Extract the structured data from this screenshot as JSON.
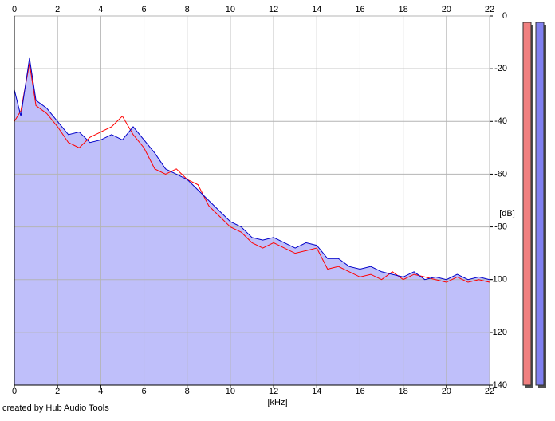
{
  "chart_data": {
    "type": "line",
    "x_label": "[kHz]",
    "y_label": "[dB]",
    "footer": "created by Hub Audio Tools",
    "x": [
      0,
      0.3,
      0.7,
      1,
      1.5,
      2,
      2.5,
      3,
      3.5,
      4,
      4.5,
      5,
      5.5,
      6,
      6.5,
      7,
      7.5,
      8,
      8.5,
      9,
      9.5,
      10,
      10.5,
      11,
      11.5,
      12,
      12.5,
      13,
      13.5,
      14,
      14.5,
      15,
      15.5,
      16,
      16.5,
      17,
      17.5,
      18,
      18.5,
      19,
      19.5,
      20,
      20.5,
      21,
      21.5,
      22
    ],
    "series": [
      {
        "color": "#ff0000",
        "values": [
          -40,
          -36,
          -18,
          -34,
          -37,
          -42,
          -48,
          -50,
          -46,
          -44,
          -42,
          -38,
          -45,
          -50,
          -58,
          -60,
          -58,
          -62,
          -64,
          -72,
          -76,
          -80,
          -82,
          -86,
          -88,
          -86,
          -88,
          -90,
          -89,
          -88,
          -96,
          -95,
          -97,
          -99,
          -98,
          -100,
          -97,
          -100,
          -98,
          -99,
          -100,
          -101,
          -99,
          -101,
          -100,
          -101
        ]
      },
      {
        "color": "#0000c8",
        "values": [
          -28,
          -38,
          -16,
          -32,
          -35,
          -40,
          -45,
          -44,
          -48,
          -47,
          -45,
          -47,
          -42,
          -47,
          -52,
          -58,
          -60,
          -62,
          -66,
          -70,
          -74,
          -78,
          -80,
          -84,
          -85,
          -84,
          -86,
          -88,
          -86,
          -87,
          -92,
          -92,
          -95,
          -96,
          -95,
          -97,
          -98,
          -99,
          -97,
          -100,
          -99,
          -100,
          -98,
          -100,
          -99,
          -100
        ]
      }
    ],
    "fill_color": "#bfbffa",
    "xlim": [
      0,
      22
    ],
    "xticks": [
      0,
      2,
      4,
      6,
      8,
      10,
      12,
      14,
      16,
      18,
      20,
      22
    ],
    "ylim": [
      -140,
      0
    ],
    "yticks": [
      0,
      -20,
      -40,
      -60,
      -80,
      -100,
      -120,
      -140
    ],
    "grid": true
  }
}
